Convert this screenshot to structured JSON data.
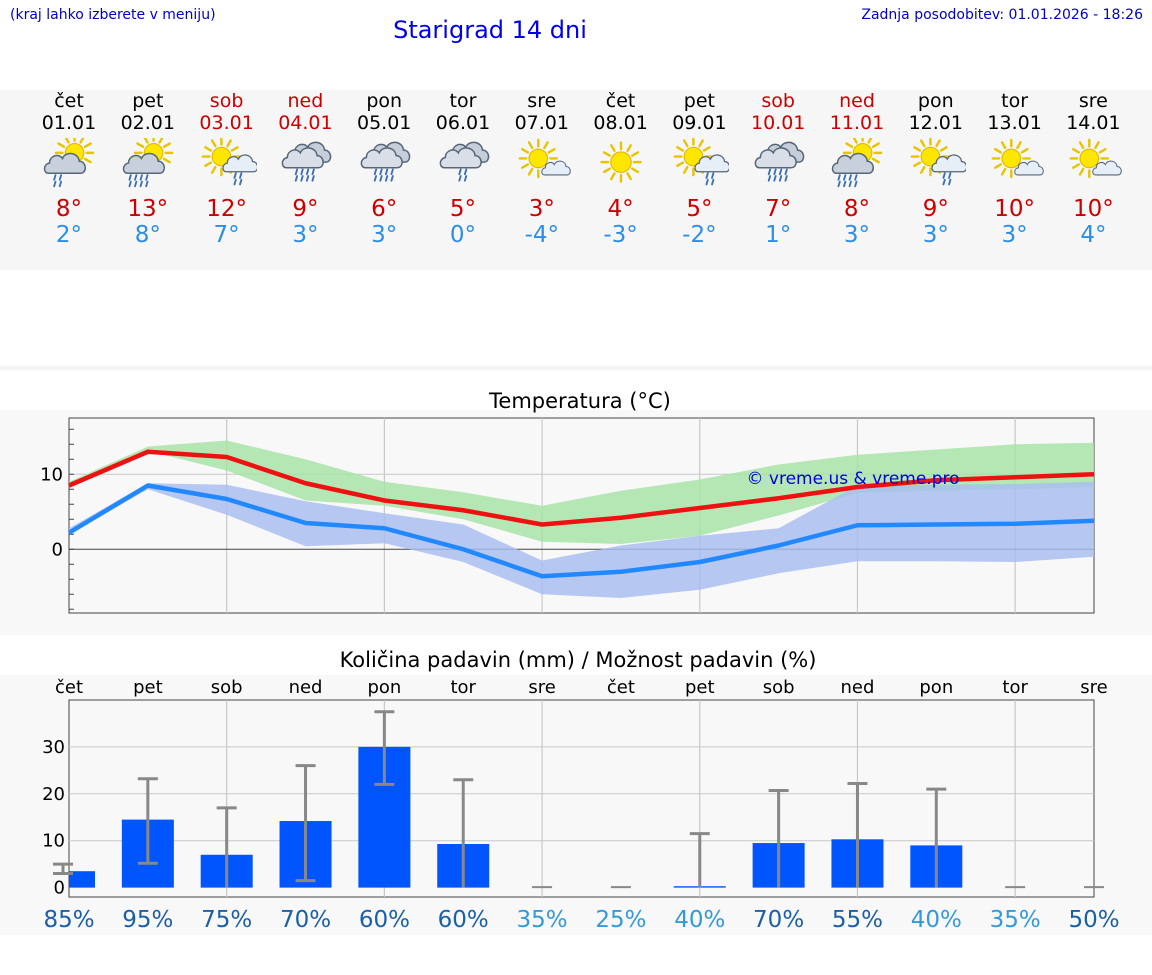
{
  "header": {
    "hint": "(kraj lahko izberete v meniju)",
    "title": "Starigrad 14 dni",
    "updated": "Zadnja posodobitev: 01.01.2026 - 18:26"
  },
  "days": [
    {
      "name": "čet",
      "date": "01.01",
      "weekend": false,
      "icon": "sun-cloud-rain-icon",
      "max": "8°",
      "min": "2°"
    },
    {
      "name": "pet",
      "date": "02.01",
      "weekend": false,
      "icon": "sun-cloud-heavy-rain-icon",
      "max": "13°",
      "min": "8°"
    },
    {
      "name": "sob",
      "date": "03.01",
      "weekend": true,
      "icon": "sun-cloud-light-rain-icon",
      "max": "12°",
      "min": "7°"
    },
    {
      "name": "ned",
      "date": "04.01",
      "weekend": true,
      "icon": "cloud-rain-icon",
      "max": "9°",
      "min": "3°"
    },
    {
      "name": "pon",
      "date": "05.01",
      "weekend": false,
      "icon": "cloud-rain-icon",
      "max": "6°",
      "min": "3°"
    },
    {
      "name": "tor",
      "date": "06.01",
      "weekend": false,
      "icon": "cloud-light-rain-icon",
      "max": "5°",
      "min": "0°"
    },
    {
      "name": "sre",
      "date": "07.01",
      "weekend": false,
      "icon": "sun-small-cloud-icon",
      "max": "3°",
      "min": "-4°"
    },
    {
      "name": "čet",
      "date": "08.01",
      "weekend": false,
      "icon": "sun-icon",
      "max": "4°",
      "min": "-3°"
    },
    {
      "name": "pet",
      "date": "09.01",
      "weekend": false,
      "icon": "sun-cloud-light-rain-icon",
      "max": "5°",
      "min": "-2°"
    },
    {
      "name": "sob",
      "date": "10.01",
      "weekend": true,
      "icon": "cloud-rain-icon",
      "max": "7°",
      "min": "1°"
    },
    {
      "name": "ned",
      "date": "11.01",
      "weekend": true,
      "icon": "sun-cloud-heavy-rain-icon",
      "max": "8°",
      "min": "3°"
    },
    {
      "name": "pon",
      "date": "12.01",
      "weekend": false,
      "icon": "sun-cloud-light-rain-icon",
      "max": "9°",
      "min": "3°"
    },
    {
      "name": "tor",
      "date": "13.01",
      "weekend": false,
      "icon": "sun-small-cloud-icon",
      "max": "10°",
      "min": "3°"
    },
    {
      "name": "sre",
      "date": "14.01",
      "weekend": false,
      "icon": "sun-small-cloud-icon",
      "max": "10°",
      "min": "4°"
    }
  ],
  "chart_data": [
    {
      "type": "line",
      "title": "Temperatura (°C)",
      "watermark": "© vreme.us & vreme.pro",
      "ylim": [
        -8.5,
        17.5
      ],
      "yticks": [
        0,
        10
      ],
      "grid": true,
      "x": [
        0,
        1,
        2,
        3,
        4,
        5,
        6,
        7,
        8,
        9,
        10,
        11,
        12,
        13
      ],
      "series": [
        {
          "name": "max",
          "color": "#ee1111",
          "values": [
            8.5,
            13,
            12.3,
            8.8,
            6.5,
            5.2,
            3.3,
            4.2,
            5.5,
            6.8,
            8.3,
            9.2,
            9.6,
            10
          ]
        },
        {
          "name": "min",
          "color": "#2288ff",
          "values": [
            2.2,
            8.5,
            6.7,
            3.5,
            2.8,
            0,
            -3.6,
            -3.0,
            -1.7,
            0.5,
            3.2,
            3.3,
            3.4,
            3.8
          ]
        }
      ],
      "bands": [
        {
          "name": "max-range",
          "color": "#a6e3a6",
          "upper": [
            9,
            13.7,
            14.5,
            12,
            9,
            7.6,
            5.8,
            7.8,
            9.3,
            11.3,
            12.6,
            13.3,
            14,
            14.2
          ],
          "lower": [
            8.3,
            13.1,
            10.5,
            6.5,
            5.8,
            4,
            1,
            0.7,
            1.8,
            4.5,
            7.5,
            7.8,
            8,
            8.3
          ]
        },
        {
          "name": "min-range",
          "color": "#a7bdf0",
          "upper": [
            2.8,
            8.8,
            8.6,
            6.4,
            4.8,
            3.3,
            -1.5,
            0.5,
            1.8,
            2.8,
            8.5,
            8.6,
            8.7,
            9
          ],
          "lower": [
            2,
            8,
            4.6,
            0.4,
            0.8,
            -1.7,
            -6,
            -6.5,
            -5.4,
            -3.2,
            -1.6,
            -1.6,
            -1.7,
            -1
          ]
        }
      ]
    },
    {
      "type": "bar",
      "title": "Količina padavin (mm) / Možnost padavin (%)",
      "categories": [
        "čet",
        "pet",
        "sob",
        "ned",
        "pon",
        "tor",
        "sre",
        "čet",
        "pet",
        "sob",
        "ned",
        "pon",
        "tor",
        "sre"
      ],
      "values": [
        3.5,
        14.5,
        7,
        14.2,
        30,
        9.3,
        0,
        0,
        0.3,
        9.5,
        10.3,
        9,
        0,
        0
      ],
      "error_low": [
        3,
        5.2,
        0,
        1.5,
        22,
        0,
        0,
        0,
        0,
        0,
        0,
        0,
        0,
        0
      ],
      "error_high": [
        5,
        23.2,
        17,
        26,
        37.5,
        23,
        0,
        0,
        11.5,
        20.7,
        22.2,
        21,
        0,
        0
      ],
      "probability": [
        "85%",
        "95%",
        "75%",
        "70%",
        "60%",
        "60%",
        "35%",
        "25%",
        "40%",
        "70%",
        "55%",
        "40%",
        "35%",
        "50%"
      ],
      "probability_colors": [
        "#1a5faa",
        "#1a5faa",
        "#1a5faa",
        "#1a5faa",
        "#1a5faa",
        "#1a5faa",
        "#3399dd",
        "#3399dd",
        "#3399dd",
        "#1a5faa",
        "#1a5faa",
        "#3399dd",
        "#3399dd",
        "#1a5faa"
      ],
      "ylim": [
        -2,
        40
      ],
      "yticks": [
        0,
        10,
        20,
        30
      ],
      "bar_color": "#0055ff",
      "grid": true
    }
  ]
}
